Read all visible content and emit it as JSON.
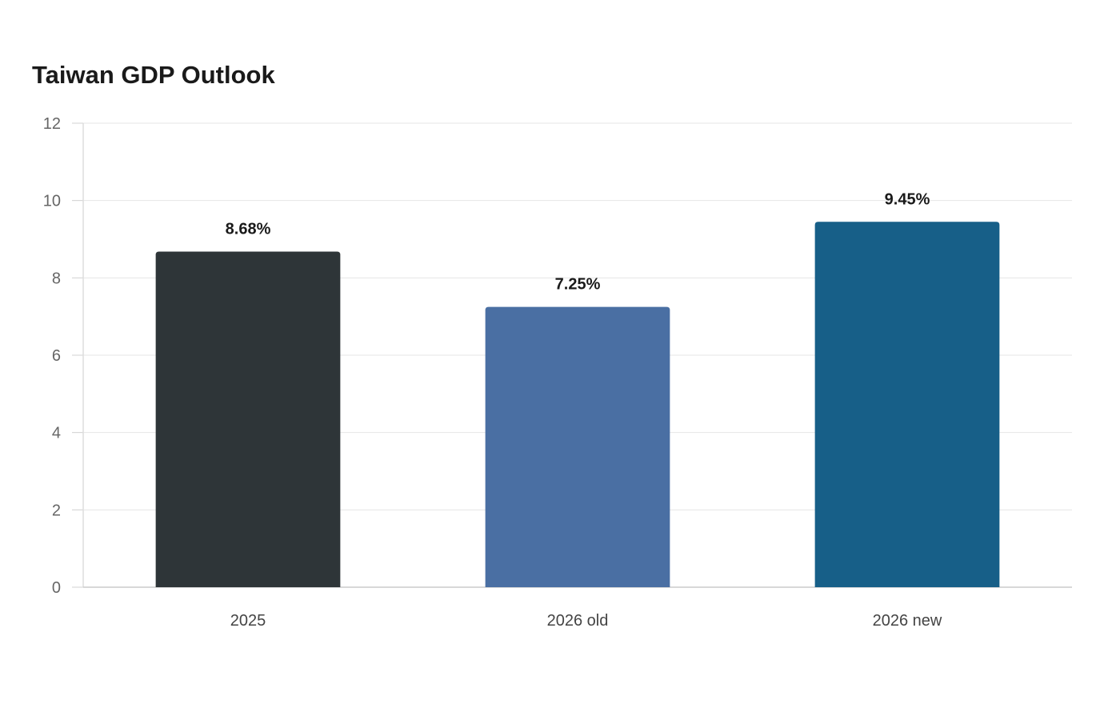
{
  "chart_data": {
    "type": "bar",
    "title": "Taiwan GDP Outlook",
    "xlabel": "",
    "ylabel": "",
    "categories": [
      "2025",
      "2026 old",
      "2026 new"
    ],
    "values": [
      8.68,
      7.25,
      9.45
    ],
    "value_labels": [
      "8.68%",
      "7.25%",
      "9.45%"
    ],
    "colors": [
      "#2e3538",
      "#4a6fa3",
      "#175f88"
    ],
    "ylim": [
      0,
      12
    ],
    "yticks": [
      0,
      2,
      4,
      6,
      8,
      10,
      12
    ],
    "grid": true,
    "legend": "none"
  }
}
